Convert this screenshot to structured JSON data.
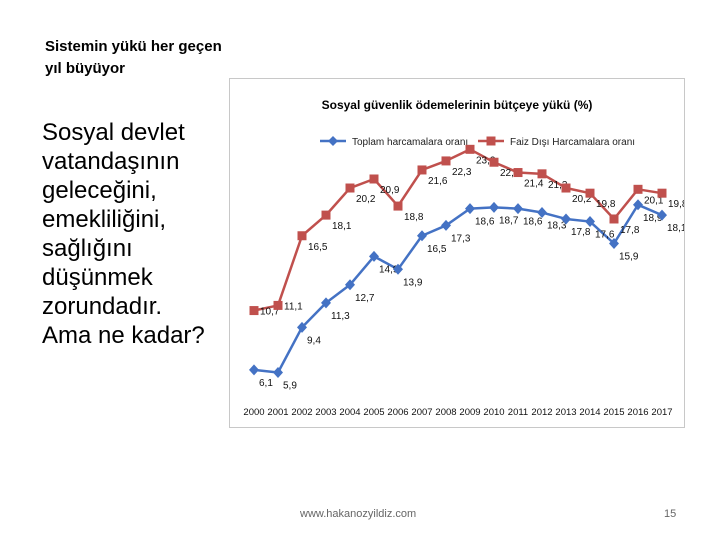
{
  "slide": {
    "title_lines": [
      "Sistemin yükü her geçen",
      "yıl büyüyor"
    ],
    "body_lines": [
      "Sosyal devlet",
      "vatandaşının",
      "geleceğini,",
      "emekliliğini,",
      "sağlığını",
      "düşünmek",
      "zorundadır.",
      "Ama ne kadar?"
    ],
    "footer_url": "www.hakanozyildiz.com",
    "page_number": "15"
  },
  "chart_data": {
    "type": "line",
    "title": "Sosyal güvenlik ödemelerinin bütçeye yükü (%)",
    "x": [
      "2000",
      "2001",
      "2002",
      "2003",
      "2004",
      "2005",
      "2006",
      "2007",
      "2008",
      "2009",
      "2010",
      "2011",
      "2012",
      "2013",
      "2014",
      "2015",
      "2016",
      "2017"
    ],
    "ylim": [
      4,
      24
    ],
    "grid": false,
    "legend_position": "top",
    "series": [
      {
        "name": "Toplam harcamalara oranı",
        "color": "#4472C4",
        "marker": "diamond",
        "values": [
          6.1,
          5.9,
          9.4,
          11.3,
          12.7,
          14.9,
          13.9,
          16.5,
          17.3,
          18.6,
          18.7,
          18.6,
          18.3,
          17.8,
          17.6,
          15.9,
          18.9,
          18.1
        ],
        "labels": [
          "6,1",
          "5,9",
          "9,4",
          "11,3",
          "12,7",
          "14,9",
          "13,9",
          "16,5",
          "17,3",
          "18,6",
          "18,7",
          "18,6",
          "18,3",
          "17,8",
          "17,6",
          "15,9",
          "18,9",
          "18,1"
        ]
      },
      {
        "name": "Faiz Dışı Harcamalara oranı",
        "color": "#C0504D",
        "marker": "square",
        "values": [
          10.7,
          11.1,
          16.5,
          18.1,
          20.2,
          20.9,
          18.8,
          21.6,
          22.3,
          23.2,
          22.2,
          21.4,
          21.3,
          20.2,
          19.8,
          17.8,
          20.1,
          19.8
        ],
        "labels": [
          "10,7",
          "11,1",
          "16,5",
          "18,1",
          "20,2",
          "20,9",
          "18,8",
          "21,6",
          "22,3",
          "23,2",
          "22,2",
          "21,4",
          "21,3",
          "20,2",
          "19,8",
          "17,8",
          "20,1",
          "19,8"
        ]
      }
    ]
  }
}
